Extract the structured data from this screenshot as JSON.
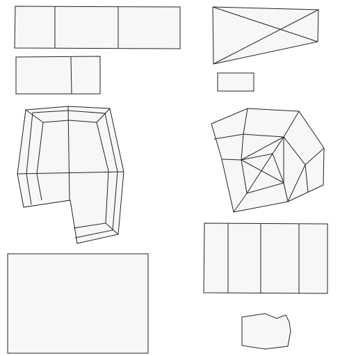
{
  "diagram": {
    "kind": "polygon-mesh-pieces",
    "piece_count": 9,
    "colors": {
      "fill": "#f7f7f7",
      "stroke": "#222222",
      "background": "#ffffff"
    },
    "pieces": [
      {
        "id": "strip-top-left",
        "shape": "rectangle",
        "segments": 3
      },
      {
        "id": "small-rect-left",
        "shape": "rectangle",
        "segments": 2
      },
      {
        "id": "ring-u-shape",
        "shape": "polygon-ring",
        "segments": 0
      },
      {
        "id": "large-rect-bottom-left",
        "shape": "rectangle",
        "segments": 1
      },
      {
        "id": "triangulated-quad",
        "shape": "quadrilateral",
        "segments": 4
      },
      {
        "id": "tiny-rect",
        "shape": "rectangle",
        "segments": 1
      },
      {
        "id": "triangulated-polygon",
        "shape": "polygon",
        "segments": 0
      },
      {
        "id": "strip-bottom-right",
        "shape": "rectangle",
        "segments": 4
      },
      {
        "id": "irregular-blob",
        "shape": "polygon",
        "segments": 1
      }
    ]
  }
}
